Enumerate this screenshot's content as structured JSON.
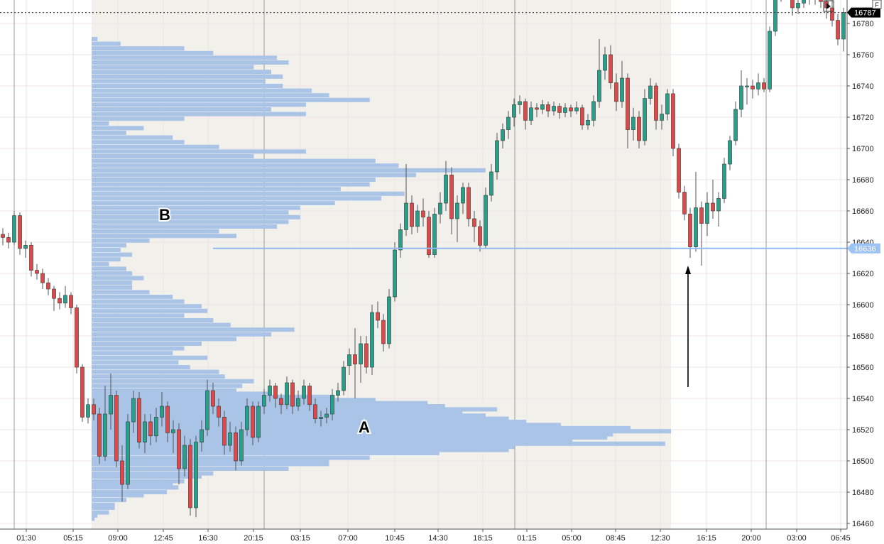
{
  "chart_data": {
    "type": "candlestick",
    "title": "",
    "xlabel": "",
    "ylabel": "",
    "ylim": [
      16455,
      16795
    ],
    "y_ticks": [
      16460,
      16480,
      16500,
      16520,
      16540,
      16560,
      16580,
      16600,
      16620,
      16640,
      16660,
      16680,
      16700,
      16720,
      16740,
      16760,
      16780
    ],
    "x_ticks": [
      "01:30",
      "05:15",
      "09:00",
      "12:45",
      "16:30",
      "20:15",
      "03:15",
      "07:00",
      "10:45",
      "14:30",
      "18:15",
      "01:15",
      "05:00",
      "08:45",
      "12:30",
      "16:15",
      "20:00",
      "03:00",
      "06:45"
    ],
    "grid": true,
    "colors": {
      "up": "#26a08a",
      "down": "#e04848",
      "profile": "#a9c4e6",
      "level_line": "#8fb8f0",
      "session_shade": "#f2f0eb",
      "last_price_bg": "#000000"
    },
    "ohlc": [
      [
        16645,
        16649,
        16638,
        16643
      ],
      [
        16643,
        16646,
        16636,
        16640
      ],
      [
        16640,
        16660,
        16638,
        16657
      ],
      [
        16657,
        16659,
        16632,
        16636
      ],
      [
        16636,
        16641,
        16630,
        16638
      ],
      [
        16638,
        16640,
        16618,
        16622
      ],
      [
        16622,
        16626,
        16616,
        16620
      ],
      [
        16620,
        16623,
        16610,
        16614
      ],
      [
        16614,
        16617,
        16606,
        16610
      ],
      [
        16610,
        16612,
        16596,
        16604
      ],
      [
        16604,
        16608,
        16597,
        16601
      ],
      [
        16601,
        16612,
        16598,
        16606
      ],
      [
        16606,
        16608,
        16594,
        16598
      ],
      [
        16598,
        16600,
        16556,
        16560
      ],
      [
        16560,
        16562,
        16525,
        16528
      ],
      [
        16528,
        16540,
        16524,
        16536
      ],
      [
        16536,
        16540,
        16526,
        16530
      ],
      [
        16530,
        16534,
        16498,
        16503
      ],
      [
        16503,
        16548,
        16500,
        16530
      ],
      [
        16530,
        16556,
        16520,
        16542
      ],
      [
        16542,
        16545,
        16496,
        16500
      ],
      [
        16500,
        16510,
        16474,
        16485
      ],
      [
        16485,
        16530,
        16482,
        16525
      ],
      [
        16525,
        16545,
        16518,
        16540
      ],
      [
        16540,
        16544,
        16508,
        16512
      ],
      [
        16512,
        16530,
        16505,
        16525
      ],
      [
        16525,
        16530,
        16510,
        16516
      ],
      [
        16516,
        16534,
        16512,
        16528
      ],
      [
        16528,
        16544,
        16522,
        16535
      ],
      [
        16535,
        16538,
        16512,
        16518
      ],
      [
        16518,
        16526,
        16505,
        16520
      ],
      [
        16520,
        16524,
        16485,
        16495
      ],
      [
        16495,
        16516,
        16490,
        16510
      ],
      [
        16510,
        16514,
        16465,
        16470
      ],
      [
        16470,
        16516,
        16464,
        16512
      ],
      [
        16512,
        16526,
        16506,
        16520
      ],
      [
        16520,
        16552,
        16516,
        16545
      ],
      [
        16545,
        16550,
        16530,
        16535
      ],
      [
        16535,
        16540,
        16522,
        16528
      ],
      [
        16528,
        16532,
        16504,
        16510
      ],
      [
        16510,
        16525,
        16506,
        16518
      ],
      [
        16518,
        16522,
        16494,
        16500
      ],
      [
        16500,
        16525,
        16497,
        16520
      ],
      [
        16520,
        16540,
        16516,
        16535
      ],
      [
        16535,
        16538,
        16510,
        16515
      ],
      [
        16515,
        16538,
        16512,
        16535
      ],
      [
        16535,
        16546,
        16530,
        16542
      ],
      [
        16542,
        16552,
        16538,
        16548
      ],
      [
        16548,
        16550,
        16534,
        16540
      ],
      [
        16540,
        16543,
        16530,
        16536
      ],
      [
        16536,
        16554,
        16533,
        16550
      ],
      [
        16550,
        16552,
        16530,
        16535
      ],
      [
        16535,
        16545,
        16532,
        16540
      ],
      [
        16540,
        16552,
        16536,
        16548
      ],
      [
        16548,
        16550,
        16532,
        16536
      ],
      [
        16536,
        16540,
        16524,
        16527
      ],
      [
        16527,
        16532,
        16522,
        16528
      ],
      [
        16528,
        16534,
        16524,
        16530
      ],
      [
        16530,
        16546,
        16526,
        16542
      ],
      [
        16542,
        16550,
        16538,
        16545
      ],
      [
        16545,
        16564,
        16542,
        16560
      ],
      [
        16561,
        16572,
        16555,
        16568
      ],
      [
        16568,
        16585,
        16540,
        16562
      ],
      [
        16562,
        16580,
        16550,
        16575
      ],
      [
        16575,
        16580,
        16556,
        16560
      ],
      [
        16560,
        16600,
        16555,
        16595
      ],
      [
        16595,
        16602,
        16585,
        16590
      ],
      [
        16590,
        16594,
        16570,
        16575
      ],
      [
        16575,
        16610,
        16572,
        16605
      ],
      [
        16605,
        16640,
        16602,
        16635
      ],
      [
        16635,
        16652,
        16630,
        16648
      ],
      [
        16648,
        16690,
        16644,
        16665
      ],
      [
        16665,
        16670,
        16645,
        16650
      ],
      [
        16650,
        16664,
        16646,
        16660
      ],
      [
        16660,
        16668,
        16650,
        16656
      ],
      [
        16656,
        16660,
        16630,
        16632
      ],
      [
        16632,
        16662,
        16630,
        16658
      ],
      [
        16658,
        16672,
        16652,
        16665
      ],
      [
        16665,
        16692,
        16660,
        16683
      ],
      [
        16683,
        16688,
        16645,
        16655
      ],
      [
        16655,
        16670,
        16640,
        16665
      ],
      [
        16665,
        16678,
        16658,
        16675
      ],
      [
        16675,
        16678,
        16650,
        16655
      ],
      [
        16655,
        16660,
        16640,
        16650
      ],
      [
        16650,
        16654,
        16634,
        16638
      ],
      [
        16638,
        16675,
        16636,
        16670
      ],
      [
        16670,
        16690,
        16666,
        16685
      ],
      [
        16685,
        16710,
        16680,
        16705
      ],
      [
        16705,
        16716,
        16700,
        16712
      ],
      [
        16712,
        16724,
        16706,
        16720
      ],
      [
        16720,
        16732,
        16714,
        16728
      ],
      [
        16728,
        16734,
        16722,
        16730
      ],
      [
        16730,
        16732,
        16712,
        16718
      ],
      [
        16718,
        16730,
        16715,
        16726
      ],
      [
        16726,
        16729,
        16720,
        16725
      ],
      [
        16725,
        16731,
        16722,
        16728
      ],
      [
        16728,
        16730,
        16720,
        16724
      ],
      [
        16724,
        16730,
        16721,
        16727
      ],
      [
        16727,
        16729,
        16719,
        16723
      ],
      [
        16723,
        16729,
        16720,
        16726
      ],
      [
        16726,
        16728,
        16720,
        16724
      ],
      [
        16724,
        16730,
        16722,
        16726
      ],
      [
        16726,
        16728,
        16712,
        16715
      ],
      [
        16715,
        16722,
        16712,
        16718
      ],
      [
        16718,
        16734,
        16714,
        16730
      ],
      [
        16730,
        16770,
        16726,
        16750
      ],
      [
        16750,
        16765,
        16744,
        16760
      ],
      [
        16760,
        16766,
        16738,
        16742
      ],
      [
        16742,
        16748,
        16724,
        16730
      ],
      [
        16730,
        16756,
        16726,
        16745
      ],
      [
        16745,
        16748,
        16700,
        16712
      ],
      [
        16712,
        16726,
        16705,
        16720
      ],
      [
        16720,
        16724,
        16700,
        16705
      ],
      [
        16705,
        16738,
        16702,
        16732
      ],
      [
        16732,
        16745,
        16728,
        16740
      ],
      [
        16740,
        16742,
        16712,
        16718
      ],
      [
        16718,
        16728,
        16712,
        16722
      ],
      [
        16722,
        16738,
        16718,
        16735
      ],
      [
        16735,
        16738,
        16695,
        16700
      ],
      [
        16700,
        16703,
        16668,
        16672
      ],
      [
        16672,
        16676,
        16654,
        16658
      ],
      [
        16658,
        16662,
        16630,
        16637
      ],
      [
        16637,
        16685,
        16634,
        16662
      ],
      [
        16662,
        16666,
        16625,
        16652
      ],
      [
        16652,
        16672,
        16644,
        16665
      ],
      [
        16665,
        16680,
        16655,
        16660
      ],
      [
        16660,
        16672,
        16650,
        16668
      ],
      [
        16668,
        16694,
        16665,
        16690
      ],
      [
        16690,
        16708,
        16686,
        16705
      ],
      [
        16705,
        16730,
        16702,
        16725
      ],
      [
        16725,
        16750,
        16720,
        16740
      ],
      [
        16740,
        16745,
        16728,
        16740
      ],
      [
        16740,
        16744,
        16732,
        16738
      ],
      [
        16738,
        16748,
        16734,
        16742
      ],
      [
        16742,
        16745,
        16736,
        16738
      ],
      [
        16738,
        16778,
        16736,
        16775
      ],
      [
        16775,
        16800,
        16772,
        16798
      ],
      [
        16798,
        16808,
        16794,
        16805
      ],
      [
        16805,
        16808,
        16795,
        16800
      ],
      [
        16800,
        16803,
        16785,
        16790
      ],
      [
        16790,
        16798,
        16786,
        16793
      ],
      [
        16793,
        16800,
        16790,
        16796
      ],
      [
        16796,
        16803,
        16792,
        16800
      ],
      [
        16800,
        16802,
        16792,
        16797
      ],
      [
        16797,
        16800,
        16790,
        16794
      ],
      [
        16794,
        16798,
        16783,
        16790
      ],
      [
        16790,
        16795,
        16778,
        16782
      ],
      [
        16782,
        16786,
        16766,
        16770
      ],
      [
        16770,
        16790,
        16762,
        16787
      ]
    ],
    "volume_profile": [
      [
        16770,
        1
      ],
      [
        16767,
        5
      ],
      [
        16764,
        16
      ],
      [
        16761,
        21
      ],
      [
        16758,
        32
      ],
      [
        16755,
        34
      ],
      [
        16752,
        28
      ],
      [
        16749,
        31
      ],
      [
        16746,
        33
      ],
      [
        16743,
        30
      ],
      [
        16740,
        33
      ],
      [
        16737,
        38
      ],
      [
        16734,
        41
      ],
      [
        16731,
        48
      ],
      [
        16728,
        37
      ],
      [
        16725,
        31
      ],
      [
        16722,
        37
      ],
      [
        16719,
        16
      ],
      [
        16716,
        3
      ],
      [
        16713,
        9
      ],
      [
        16710,
        6
      ],
      [
        16707,
        14
      ],
      [
        16704,
        16
      ],
      [
        16701,
        22
      ],
      [
        16698,
        37
      ],
      [
        16695,
        28
      ],
      [
        16692,
        49
      ],
      [
        16689,
        53
      ],
      [
        16686,
        68
      ],
      [
        16683,
        56
      ],
      [
        16680,
        49
      ],
      [
        16677,
        48
      ],
      [
        16674,
        43
      ],
      [
        16671,
        54
      ],
      [
        16668,
        50
      ],
      [
        16665,
        42
      ],
      [
        16662,
        36
      ],
      [
        16659,
        34
      ],
      [
        16656,
        36
      ],
      [
        16653,
        34
      ],
      [
        16650,
        32
      ],
      [
        16647,
        22
      ],
      [
        16644,
        25
      ],
      [
        16641,
        10
      ],
      [
        16638,
        6
      ],
      [
        16635,
        5
      ],
      [
        16632,
        7
      ],
      [
        16629,
        5
      ],
      [
        16626,
        3
      ],
      [
        16623,
        6
      ],
      [
        16620,
        7
      ],
      [
        16617,
        9
      ],
      [
        16614,
        7
      ],
      [
        16611,
        7
      ],
      [
        16608,
        10
      ],
      [
        16605,
        14
      ],
      [
        16602,
        16
      ],
      [
        16599,
        19
      ],
      [
        16596,
        20
      ],
      [
        16593,
        16
      ],
      [
        16590,
        21
      ],
      [
        16587,
        24
      ],
      [
        16584,
        35
      ],
      [
        16581,
        31
      ],
      [
        16578,
        25
      ],
      [
        16575,
        19
      ],
      [
        16572,
        16
      ],
      [
        16569,
        14
      ],
      [
        16566,
        20
      ],
      [
        16563,
        15
      ],
      [
        16560,
        17
      ],
      [
        16557,
        22
      ],
      [
        16554,
        23
      ],
      [
        16551,
        28
      ],
      [
        16548,
        26
      ],
      [
        16545,
        25
      ],
      [
        16543,
        31
      ],
      [
        16541,
        42
      ],
      [
        16539,
        49
      ],
      [
        16537,
        58
      ],
      [
        16535,
        61
      ],
      [
        16533,
        70
      ],
      [
        16531,
        64
      ],
      [
        16529,
        68
      ],
      [
        16527,
        72
      ],
      [
        16525,
        75
      ],
      [
        16523,
        81
      ],
      [
        16521,
        93
      ],
      [
        16519,
        100
      ],
      [
        16517,
        90
      ],
      [
        16515,
        89
      ],
      [
        16513,
        83
      ],
      [
        16511,
        99
      ],
      [
        16509,
        73
      ],
      [
        16507,
        72
      ],
      [
        16505,
        60
      ],
      [
        16502,
        48
      ],
      [
        16500,
        41
      ],
      [
        16498,
        41
      ],
      [
        16495,
        34
      ],
      [
        16492,
        21
      ],
      [
        16490,
        19
      ],
      [
        16487,
        16
      ],
      [
        16485,
        14
      ],
      [
        16483,
        15
      ],
      [
        16480,
        13
      ],
      [
        16478,
        9
      ],
      [
        16475,
        6
      ],
      [
        16472,
        4
      ],
      [
        16470,
        4
      ],
      [
        16467,
        3
      ],
      [
        16465,
        1
      ],
      [
        16463,
        0.5
      ]
    ],
    "horizontal_level": 16636,
    "last_price": 16787,
    "annotations": {
      "a_label": "A",
      "b_label": "B"
    },
    "labels": {
      "level_label": "16636",
      "last_price_label": "16787",
      "flag": "F"
    }
  }
}
